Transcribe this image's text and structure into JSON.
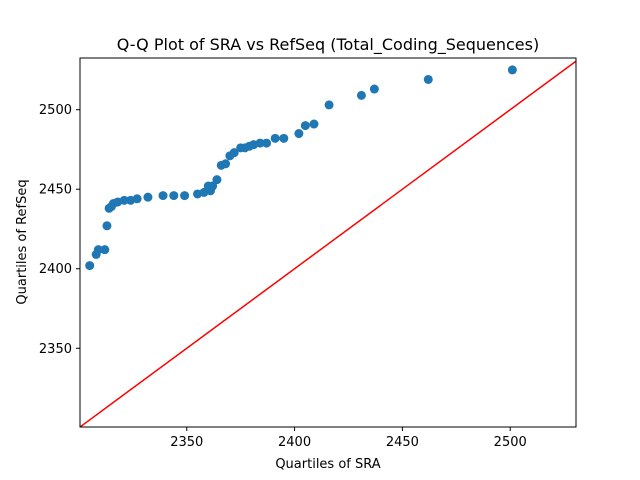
{
  "chart_data": {
    "type": "scatter",
    "title": "Q-Q Plot of SRA vs RefSeq (Total_Coding_Sequences)",
    "xlabel": "Quartiles of SRA",
    "ylabel": "Quartiles of RefSeq",
    "xlim": [
      2300.5,
      2530.5
    ],
    "ylim": [
      2300.5,
      2532.5
    ],
    "x_ticks": [
      2350,
      2400,
      2450,
      2500
    ],
    "y_ticks": [
      2350,
      2400,
      2450,
      2500
    ],
    "grid": false,
    "points_color": "#1f77b4",
    "reference_line": {
      "from": [
        2300,
        2300
      ],
      "to": [
        2531,
        2531
      ],
      "color": "#ff0000"
    },
    "points": [
      [
        2305,
        2402
      ],
      [
        2308,
        2409
      ],
      [
        2309,
        2412
      ],
      [
        2312,
        2412
      ],
      [
        2313,
        2427
      ],
      [
        2314,
        2438
      ],
      [
        2315,
        2439
      ],
      [
        2316,
        2441
      ],
      [
        2318,
        2442
      ],
      [
        2321,
        2443
      ],
      [
        2324,
        2443
      ],
      [
        2327,
        2444
      ],
      [
        2332,
        2445
      ],
      [
        2339,
        2446
      ],
      [
        2344,
        2446
      ],
      [
        2349,
        2446
      ],
      [
        2355,
        2447
      ],
      [
        2358,
        2448
      ],
      [
        2361,
        2449
      ],
      [
        2360,
        2452
      ],
      [
        2362,
        2452
      ],
      [
        2364,
        2456
      ],
      [
        2366,
        2465
      ],
      [
        2368,
        2466
      ],
      [
        2370,
        2471
      ],
      [
        2372,
        2473
      ],
      [
        2375,
        2476
      ],
      [
        2377,
        2476
      ],
      [
        2379,
        2477
      ],
      [
        2381,
        2478
      ],
      [
        2384,
        2479
      ],
      [
        2387,
        2479
      ],
      [
        2391,
        2482
      ],
      [
        2395,
        2482
      ],
      [
        2402,
        2485
      ],
      [
        2405,
        2490
      ],
      [
        2409,
        2491
      ],
      [
        2416,
        2503
      ],
      [
        2431,
        2509
      ],
      [
        2437,
        2513
      ],
      [
        2462,
        2519
      ],
      [
        2501,
        2525
      ]
    ]
  }
}
